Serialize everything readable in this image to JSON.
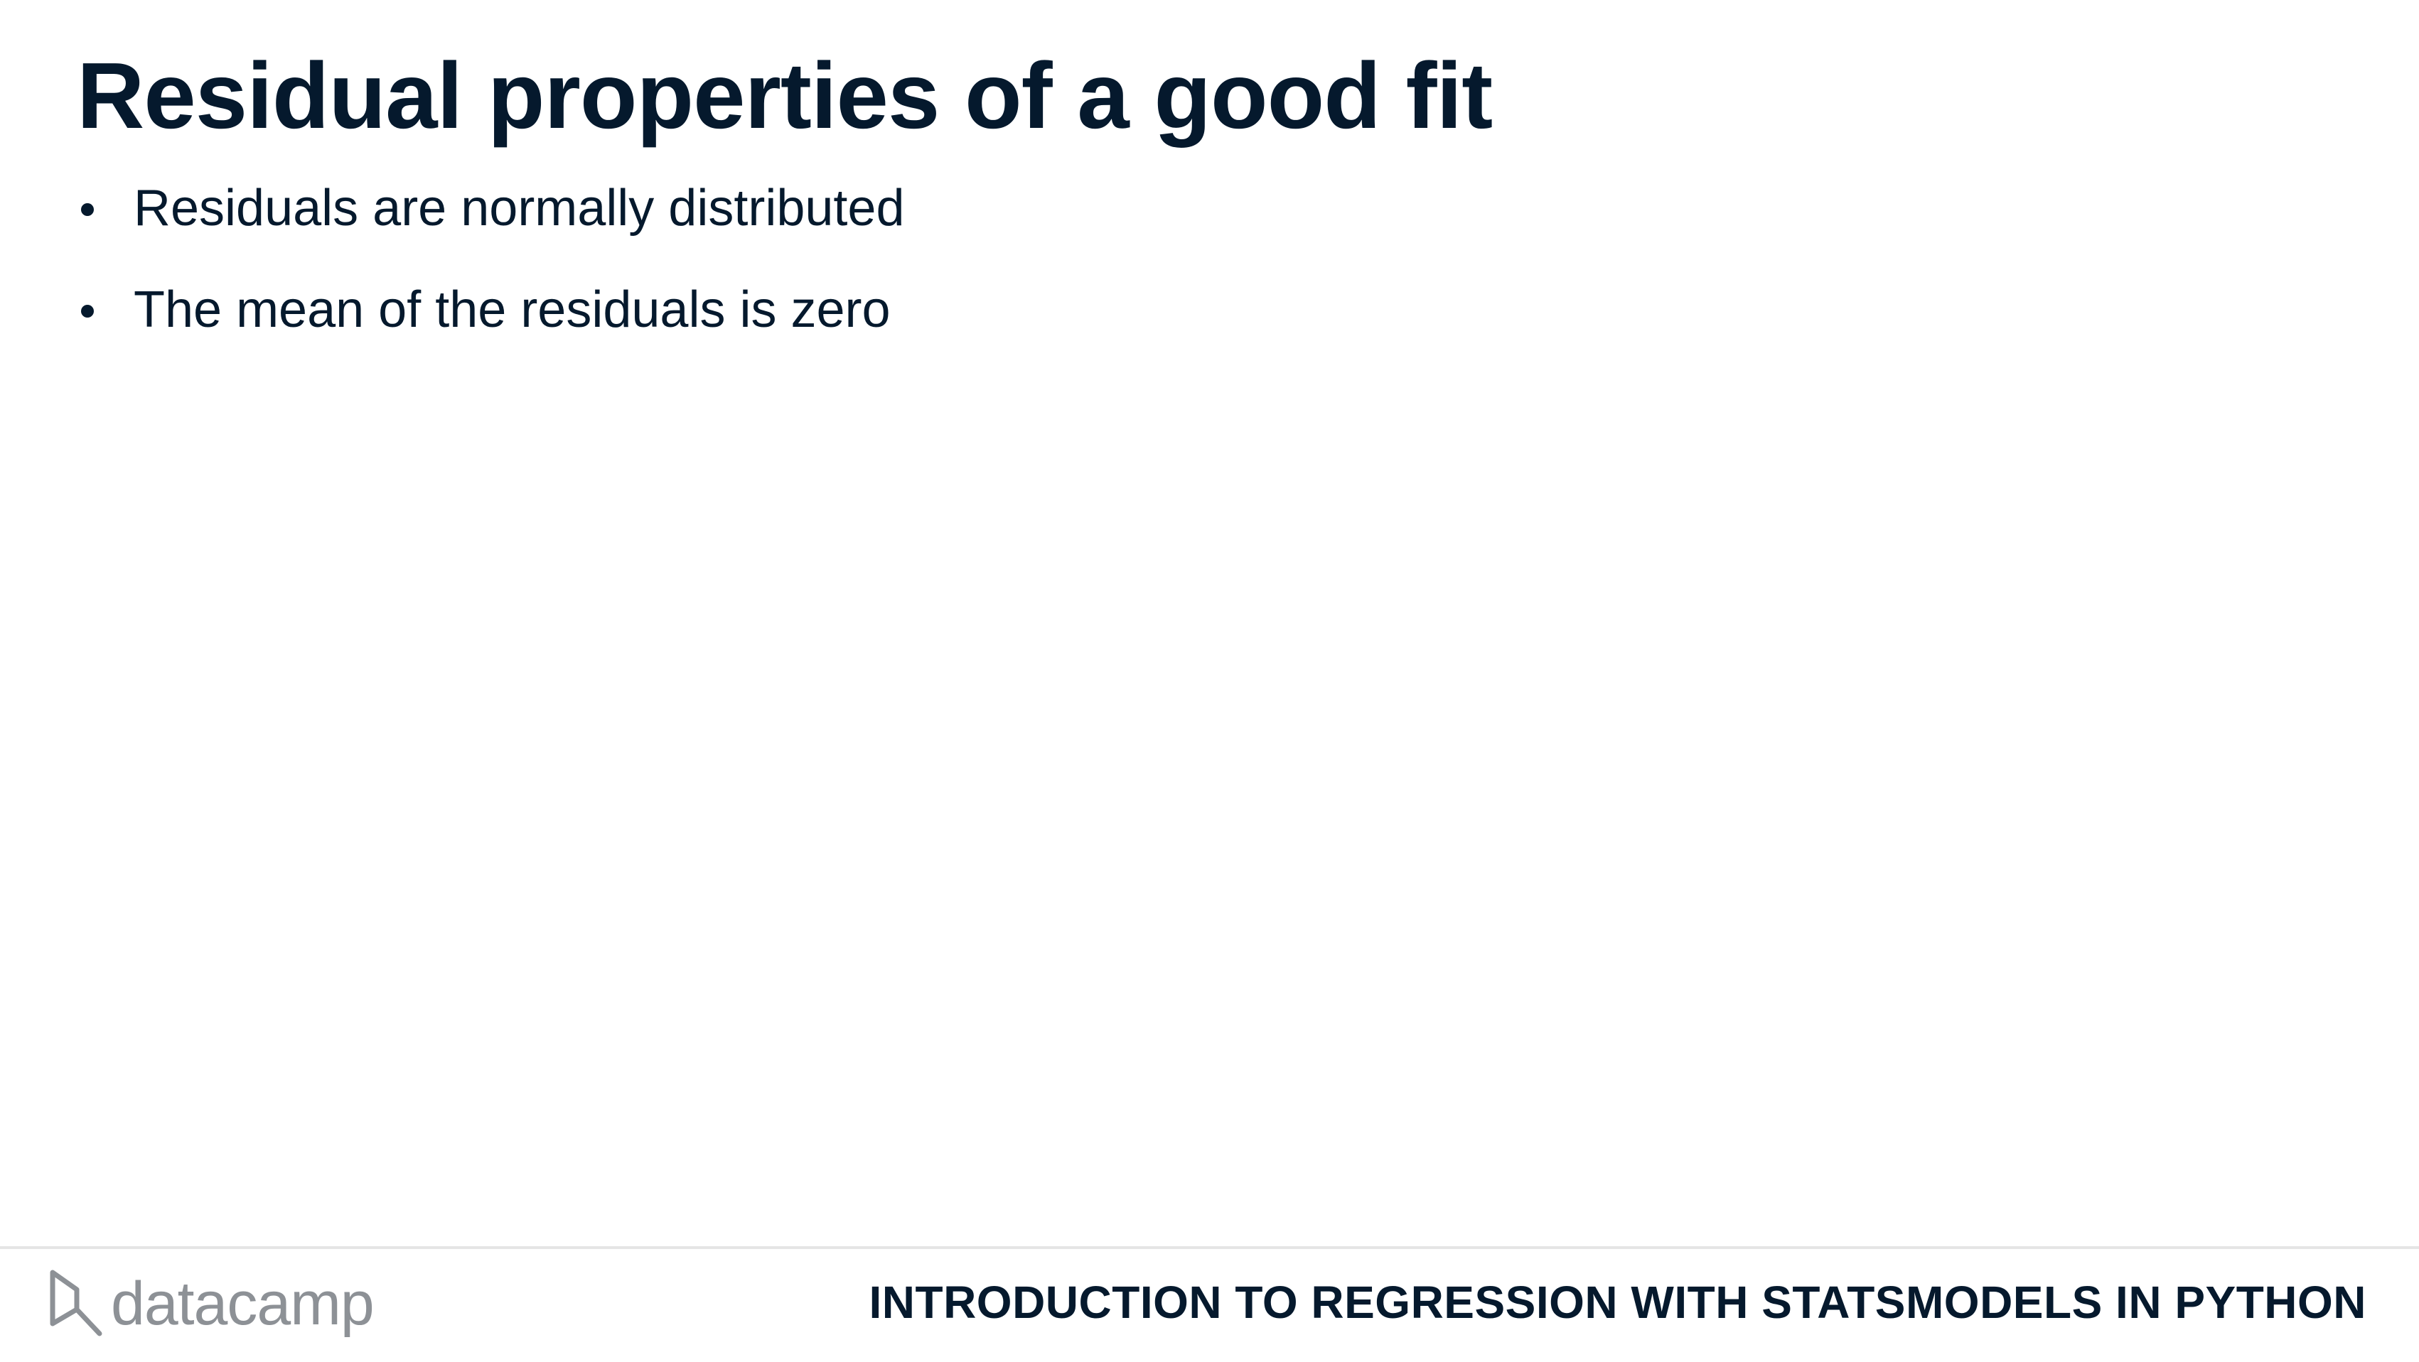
{
  "slide": {
    "title": "Residual properties of a good fit",
    "bullets": [
      {
        "text": "Residuals are normally distributed"
      },
      {
        "text": "The mean of the residuals is zero"
      }
    ]
  },
  "footer": {
    "logo_text": "datacamp",
    "logo_icon": "datacamp-logo-icon",
    "course_title": "INTRODUCTION TO REGRESSION WITH STATSMODELS IN PYTHON"
  },
  "colors": {
    "text": "#05192d",
    "logo": "#8d9196",
    "divider": "#e5e5e5",
    "background": "#ffffff"
  }
}
